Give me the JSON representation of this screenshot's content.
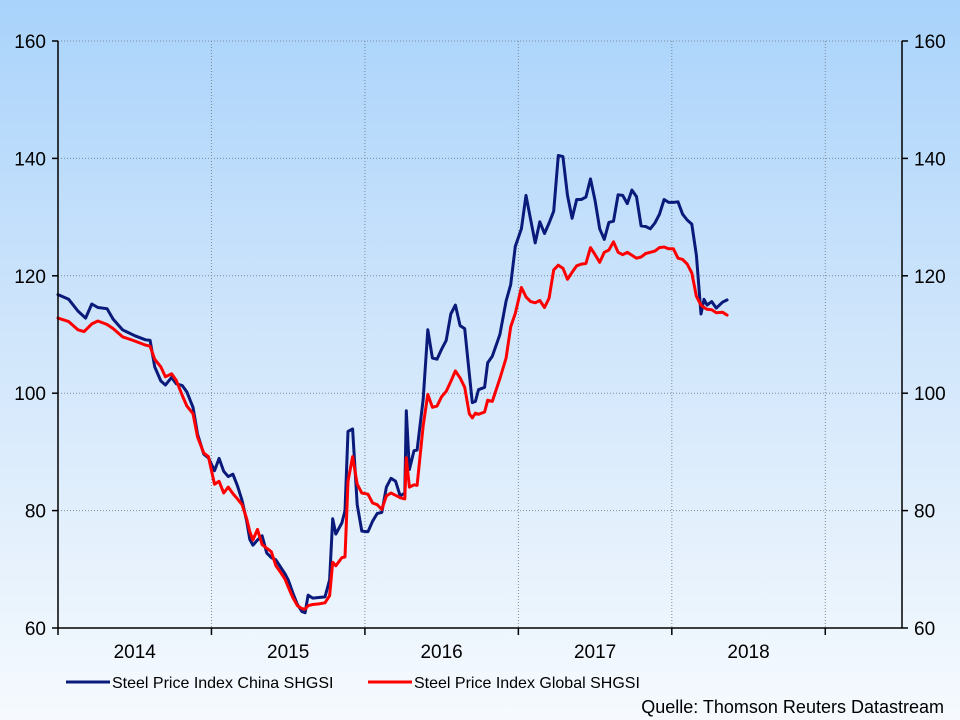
{
  "chart_data": {
    "type": "line",
    "title": "",
    "xlabel": "",
    "ylabel": "",
    "ylim": [
      60,
      160
    ],
    "y_ticks": [
      60,
      80,
      100,
      120,
      140,
      160
    ],
    "x_range": [
      2013.5,
      2019.0
    ],
    "x_ticks": [
      {
        "label": "2014",
        "start": 2013.5,
        "end": 2014.5
      },
      {
        "label": "2015",
        "start": 2014.5,
        "end": 2015.5
      },
      {
        "label": "2016",
        "start": 2015.5,
        "end": 2016.5
      },
      {
        "label": "2017",
        "start": 2016.5,
        "end": 2017.5
      },
      {
        "label": "2018",
        "start": 2017.5,
        "end": 2018.5
      }
    ],
    "grid": true,
    "dual_y_axis": true,
    "legend_position": "bottom-left",
    "source": "Quelle: Thomson Reuters Datastream",
    "series": [
      {
        "name": "Steel Price Index China SHGSI",
        "color": "#0a1a7a",
        "points": [
          [
            2013.5,
            116.8
          ],
          [
            2013.57,
            116.0
          ],
          [
            2013.63,
            114.0
          ],
          [
            2013.68,
            112.8
          ],
          [
            2013.72,
            115.2
          ],
          [
            2013.76,
            114.6
          ],
          [
            2013.82,
            114.4
          ],
          [
            2013.86,
            112.6
          ],
          [
            2013.92,
            110.8
          ],
          [
            2014.0,
            109.8
          ],
          [
            2014.07,
            109.1
          ],
          [
            2014.1,
            109.0
          ],
          [
            2014.13,
            104.5
          ],
          [
            2014.17,
            102.1
          ],
          [
            2014.2,
            101.4
          ],
          [
            2014.24,
            102.7
          ],
          [
            2014.27,
            101.6
          ],
          [
            2014.31,
            101.3
          ],
          [
            2014.34,
            100.2
          ],
          [
            2014.38,
            97.6
          ],
          [
            2014.41,
            93.0
          ],
          [
            2014.45,
            89.6
          ],
          [
            2014.48,
            89.0
          ],
          [
            2014.52,
            86.8
          ],
          [
            2014.55,
            88.9
          ],
          [
            2014.58,
            86.7
          ],
          [
            2014.61,
            85.8
          ],
          [
            2014.64,
            86.2
          ],
          [
            2014.67,
            84.2
          ],
          [
            2014.7,
            81.7
          ],
          [
            2014.73,
            78.2
          ],
          [
            2014.75,
            75.1
          ],
          [
            2014.77,
            74.1
          ],
          [
            2014.8,
            75.0
          ],
          [
            2014.83,
            75.7
          ],
          [
            2014.86,
            72.8
          ],
          [
            2014.89,
            72.0
          ],
          [
            2014.92,
            71.6
          ],
          [
            2014.95,
            70.4
          ],
          [
            2014.98,
            69.2
          ],
          [
            2015.0,
            68.2
          ],
          [
            2015.03,
            66.0
          ],
          [
            2015.06,
            64.0
          ],
          [
            2015.09,
            62.8
          ],
          [
            2015.11,
            62.6
          ],
          [
            2015.13,
            65.6
          ],
          [
            2015.16,
            65.1
          ],
          [
            2015.2,
            65.2
          ],
          [
            2015.24,
            65.3
          ],
          [
            2015.27,
            68.2
          ],
          [
            2015.29,
            78.6
          ],
          [
            2015.31,
            76.0
          ],
          [
            2015.35,
            77.9
          ],
          [
            2015.37,
            80.0
          ],
          [
            2015.39,
            93.5
          ],
          [
            2015.42,
            93.9
          ],
          [
            2015.45,
            81.0
          ],
          [
            2015.48,
            76.5
          ],
          [
            2015.52,
            76.4
          ],
          [
            2015.55,
            78.2
          ],
          [
            2015.58,
            79.5
          ],
          [
            2015.61,
            79.7
          ],
          [
            2015.64,
            84.0
          ],
          [
            2015.67,
            85.5
          ],
          [
            2015.7,
            85.0
          ],
          [
            2015.73,
            82.5
          ],
          [
            2015.76,
            83.0
          ],
          [
            2015.77,
            97.0
          ],
          [
            2015.79,
            87.0
          ],
          [
            2015.82,
            90.2
          ],
          [
            2015.84,
            90.3
          ],
          [
            2015.88,
            99.0
          ],
          [
            2015.91,
            110.8
          ],
          [
            2015.94,
            106.0
          ],
          [
            2015.97,
            105.8
          ],
          [
            2016.0,
            107.5
          ],
          [
            2016.03,
            109.0
          ],
          [
            2016.06,
            113.5
          ],
          [
            2016.09,
            115.0
          ],
          [
            2016.12,
            111.5
          ],
          [
            2016.15,
            111.0
          ],
          [
            2016.18,
            103.3
          ],
          [
            2016.2,
            98.4
          ],
          [
            2016.22,
            98.6
          ],
          [
            2016.24,
            100.6
          ],
          [
            2016.28,
            101.0
          ],
          [
            2016.3,
            105.2
          ],
          [
            2016.33,
            106.3
          ],
          [
            2016.38,
            110.0
          ],
          [
            2016.42,
            115.7
          ],
          [
            2016.45,
            118.5
          ],
          [
            2016.48,
            125.0
          ],
          [
            2016.52,
            128.0
          ],
          [
            2016.55,
            133.7
          ],
          [
            2016.58,
            129.6
          ],
          [
            2016.61,
            125.6
          ],
          [
            2016.64,
            129.2
          ],
          [
            2016.67,
            127.2
          ],
          [
            2016.7,
            129.0
          ],
          [
            2016.73,
            131.0
          ],
          [
            2016.76,
            140.5
          ],
          [
            2016.79,
            140.3
          ],
          [
            2016.82,
            133.7
          ],
          [
            2016.85,
            129.8
          ],
          [
            2016.88,
            133.0
          ],
          [
            2016.91,
            133.0
          ],
          [
            2016.94,
            133.4
          ],
          [
            2016.97,
            136.5
          ],
          [
            2017.0,
            132.8
          ],
          [
            2017.03,
            128.0
          ],
          [
            2017.06,
            126.2
          ],
          [
            2017.09,
            129.1
          ],
          [
            2017.12,
            129.3
          ],
          [
            2017.15,
            133.8
          ],
          [
            2017.18,
            133.7
          ],
          [
            2017.21,
            132.3
          ],
          [
            2017.24,
            134.6
          ],
          [
            2017.27,
            133.5
          ],
          [
            2017.3,
            128.5
          ],
          [
            2017.33,
            128.4
          ],
          [
            2017.36,
            128.0
          ],
          [
            2017.39,
            129.0
          ],
          [
            2017.42,
            130.5
          ],
          [
            2017.45,
            133.0
          ],
          [
            2017.48,
            132.5
          ],
          [
            2017.51,
            132.5
          ],
          [
            2017.54,
            132.6
          ],
          [
            2017.57,
            130.5
          ],
          [
            2017.6,
            129.5
          ],
          [
            2017.63,
            128.8
          ],
          [
            2017.66,
            123.5
          ],
          [
            2017.69,
            113.5
          ],
          [
            2017.71,
            116.0
          ],
          [
            2017.73,
            115.0
          ],
          [
            2017.76,
            115.6
          ],
          [
            2017.79,
            114.5
          ],
          [
            2017.83,
            115.5
          ],
          [
            2017.86,
            115.9
          ]
        ]
      },
      {
        "name": "Steel Price Index Global SHGSI",
        "color": "#ff0000",
        "points": [
          [
            2013.5,
            112.8
          ],
          [
            2013.57,
            112.2
          ],
          [
            2013.63,
            110.8
          ],
          [
            2013.67,
            110.5
          ],
          [
            2013.72,
            111.8
          ],
          [
            2013.76,
            112.3
          ],
          [
            2013.82,
            111.7
          ],
          [
            2013.86,
            111.0
          ],
          [
            2013.92,
            109.6
          ],
          [
            2014.0,
            108.9
          ],
          [
            2014.07,
            108.2
          ],
          [
            2014.1,
            108.0
          ],
          [
            2014.13,
            105.8
          ],
          [
            2014.17,
            104.5
          ],
          [
            2014.2,
            102.8
          ],
          [
            2014.24,
            103.3
          ],
          [
            2014.27,
            102.2
          ],
          [
            2014.31,
            99.6
          ],
          [
            2014.34,
            97.8
          ],
          [
            2014.38,
            96.5
          ],
          [
            2014.41,
            92.5
          ],
          [
            2014.45,
            89.8
          ],
          [
            2014.48,
            89.2
          ],
          [
            2014.52,
            84.5
          ],
          [
            2014.55,
            85.0
          ],
          [
            2014.58,
            83.0
          ],
          [
            2014.61,
            84.0
          ],
          [
            2014.64,
            82.9
          ],
          [
            2014.67,
            82.0
          ],
          [
            2014.7,
            81.0
          ],
          [
            2014.73,
            78.6
          ],
          [
            2014.75,
            76.4
          ],
          [
            2014.77,
            75.0
          ],
          [
            2014.8,
            76.8
          ],
          [
            2014.83,
            74.2
          ],
          [
            2014.86,
            73.6
          ],
          [
            2014.89,
            73.0
          ],
          [
            2014.92,
            70.6
          ],
          [
            2014.95,
            69.5
          ],
          [
            2014.98,
            68.3
          ],
          [
            2015.0,
            67.0
          ],
          [
            2015.03,
            65.2
          ],
          [
            2015.06,
            63.8
          ],
          [
            2015.09,
            63.3
          ],
          [
            2015.11,
            63.2
          ],
          [
            2015.13,
            63.8
          ],
          [
            2015.16,
            64.0
          ],
          [
            2015.2,
            64.1
          ],
          [
            2015.24,
            64.3
          ],
          [
            2015.27,
            65.5
          ],
          [
            2015.29,
            71.2
          ],
          [
            2015.31,
            70.6
          ],
          [
            2015.35,
            72.0
          ],
          [
            2015.37,
            72.1
          ],
          [
            2015.39,
            85.0
          ],
          [
            2015.42,
            89.2
          ],
          [
            2015.45,
            84.5
          ],
          [
            2015.48,
            83.0
          ],
          [
            2015.52,
            82.8
          ],
          [
            2015.55,
            81.3
          ],
          [
            2015.58,
            81.0
          ],
          [
            2015.61,
            80.2
          ],
          [
            2015.64,
            82.5
          ],
          [
            2015.67,
            83.0
          ],
          [
            2015.7,
            82.6
          ],
          [
            2015.73,
            82.2
          ],
          [
            2015.76,
            82.0
          ],
          [
            2015.77,
            89.0
          ],
          [
            2015.79,
            84.0
          ],
          [
            2015.82,
            84.4
          ],
          [
            2015.84,
            84.3
          ],
          [
            2015.88,
            94.5
          ],
          [
            2015.91,
            99.8
          ],
          [
            2015.94,
            97.6
          ],
          [
            2015.97,
            97.8
          ],
          [
            2016.0,
            99.4
          ],
          [
            2016.03,
            100.3
          ],
          [
            2016.06,
            102.0
          ],
          [
            2016.09,
            103.8
          ],
          [
            2016.12,
            102.6
          ],
          [
            2016.15,
            101.0
          ],
          [
            2016.18,
            96.5
          ],
          [
            2016.2,
            95.8
          ],
          [
            2016.22,
            96.6
          ],
          [
            2016.24,
            96.4
          ],
          [
            2016.28,
            96.8
          ],
          [
            2016.3,
            98.8
          ],
          [
            2016.33,
            98.6
          ],
          [
            2016.38,
            102.5
          ],
          [
            2016.42,
            106.0
          ],
          [
            2016.45,
            111.3
          ],
          [
            2016.48,
            113.6
          ],
          [
            2016.52,
            118.0
          ],
          [
            2016.55,
            116.4
          ],
          [
            2016.58,
            115.6
          ],
          [
            2016.61,
            115.4
          ],
          [
            2016.64,
            115.8
          ],
          [
            2016.67,
            114.6
          ],
          [
            2016.7,
            116.2
          ],
          [
            2016.73,
            121.0
          ],
          [
            2016.76,
            121.8
          ],
          [
            2016.79,
            121.3
          ],
          [
            2016.82,
            119.4
          ],
          [
            2016.85,
            120.6
          ],
          [
            2016.88,
            121.7
          ],
          [
            2016.91,
            122.0
          ],
          [
            2016.94,
            122.1
          ],
          [
            2016.97,
            124.8
          ],
          [
            2017.0,
            123.6
          ],
          [
            2017.03,
            122.3
          ],
          [
            2017.06,
            124.0
          ],
          [
            2017.09,
            124.4
          ],
          [
            2017.12,
            125.8
          ],
          [
            2017.15,
            124.0
          ],
          [
            2017.18,
            123.6
          ],
          [
            2017.21,
            124.0
          ],
          [
            2017.24,
            123.5
          ],
          [
            2017.27,
            123.0
          ],
          [
            2017.3,
            123.2
          ],
          [
            2017.33,
            123.8
          ],
          [
            2017.36,
            124.0
          ],
          [
            2017.39,
            124.2
          ],
          [
            2017.42,
            124.8
          ],
          [
            2017.45,
            124.9
          ],
          [
            2017.48,
            124.6
          ],
          [
            2017.51,
            124.6
          ],
          [
            2017.54,
            123.0
          ],
          [
            2017.57,
            122.8
          ],
          [
            2017.6,
            122.0
          ],
          [
            2017.63,
            120.5
          ],
          [
            2017.66,
            116.5
          ],
          [
            2017.69,
            115.0
          ],
          [
            2017.71,
            114.6
          ],
          [
            2017.73,
            114.3
          ],
          [
            2017.76,
            114.2
          ],
          [
            2017.79,
            113.7
          ],
          [
            2017.83,
            113.8
          ],
          [
            2017.86,
            113.3
          ]
        ]
      }
    ]
  }
}
